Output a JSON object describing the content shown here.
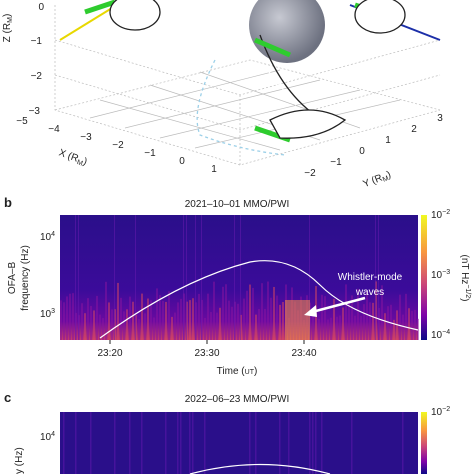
{
  "panel_a": {
    "z_label": {
      "text": "Z (R",
      "sub": "M",
      "end": ")"
    },
    "z_ticks": [
      "0",
      "−1",
      "−2",
      "−3"
    ],
    "x_label": {
      "text": "X (R",
      "sub": "M",
      "end": ")"
    },
    "x_ticks": [
      "−5",
      "−4",
      "−3",
      "−2",
      "−1",
      "0",
      "1"
    ],
    "y_label": {
      "text": "Y (R",
      "sub": "M",
      "end": ")"
    },
    "y_ticks": [
      "3",
      "2",
      "1",
      "0",
      "−1",
      "−2"
    ]
  },
  "panel_b": {
    "letter": "b",
    "title": "2021–10–01 MMO/PWI",
    "freq_ticks": [
      {
        "base": "10",
        "exp": "4"
      },
      {
        "base": "10",
        "exp": "3"
      }
    ],
    "y_label": [
      "OFA–B",
      "frequency (Hz)"
    ],
    "cbar_ticks": [
      {
        "base": "10",
        "exp": "−2"
      },
      {
        "base": "10",
        "exp": "−3"
      },
      {
        "base": "10",
        "exp": "−4"
      }
    ],
    "cbar_label": {
      "text": "(nT Hz",
      "sup": "−1/2",
      "end": ")"
    },
    "annotation": [
      "Whistler-mode",
      "waves"
    ],
    "time_ticks": [
      "23:20",
      "23:30",
      "23:40"
    ],
    "x_label": {
      "text": "Time (",
      "sc": "UT",
      "end": ")"
    }
  },
  "panel_c": {
    "letter": "c",
    "title": "2022–06–23 MMO/PWI",
    "freq_ticks": [
      {
        "base": "10",
        "exp": "4"
      }
    ],
    "y_label": "y (Hz)",
    "cbar_ticks": [
      {
        "base": "10",
        "exp": "−2"
      }
    ]
  }
}
